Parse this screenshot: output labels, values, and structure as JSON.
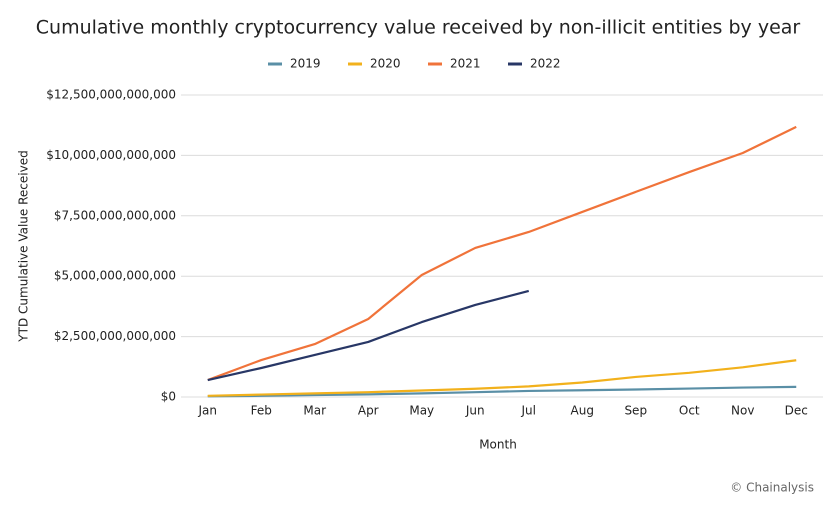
{
  "chart_data": {
    "type": "line",
    "title": "Cumulative monthly cryptocurrency value received by non-illicit entities by year",
    "xlabel": "Month",
    "ylabel": "YTD Cumulative Value Received",
    "source": "© Chainalysis",
    "categories": [
      "Jan",
      "Feb",
      "Mar",
      "Apr",
      "May",
      "Jun",
      "Jul",
      "Aug",
      "Sep",
      "Oct",
      "Nov",
      "Dec"
    ],
    "series": [
      {
        "name": "2019",
        "color": "#5a8fa6",
        "values": [
          30000000000,
          50000000000,
          80000000000,
          110000000000,
          150000000000,
          200000000000,
          250000000000,
          280000000000,
          310000000000,
          350000000000,
          390000000000,
          420000000000
        ]
      },
      {
        "name": "2020",
        "color": "#f2b11c",
        "values": [
          50000000000,
          100000000000,
          150000000000,
          200000000000,
          270000000000,
          340000000000,
          440000000000,
          600000000000,
          830000000000,
          1000000000000,
          1230000000000,
          1520000000000
        ]
      },
      {
        "name": "2021",
        "color": "#f0733a",
        "values": [
          700000000000,
          1530000000000,
          2190000000000,
          3230000000000,
          5050000000000,
          6170000000000,
          6830000000000,
          7660000000000,
          8490000000000,
          9310000000000,
          10100000000000,
          11180000000000
        ]
      },
      {
        "name": "2022",
        "color": "#283766",
        "values": [
          700000000000,
          1200000000000,
          1740000000000,
          2280000000000,
          3100000000000,
          3810000000000,
          4390000000000,
          null,
          null,
          null,
          null,
          null
        ]
      }
    ],
    "ylim": [
      0,
      12500000000000
    ],
    "yticks": [
      {
        "value": 0,
        "label": "$0"
      },
      {
        "value": 2500000000000,
        "label": "$2,500,000,000,000"
      },
      {
        "value": 5000000000000,
        "label": "$5,000,000,000,000"
      },
      {
        "value": 7500000000000,
        "label": "$7,500,000,000,000"
      },
      {
        "value": 10000000000000,
        "label": "$10,000,000,000,000"
      },
      {
        "value": 12500000000000,
        "label": "$12,500,000,000,000"
      }
    ],
    "grid": true,
    "legend": "top"
  }
}
